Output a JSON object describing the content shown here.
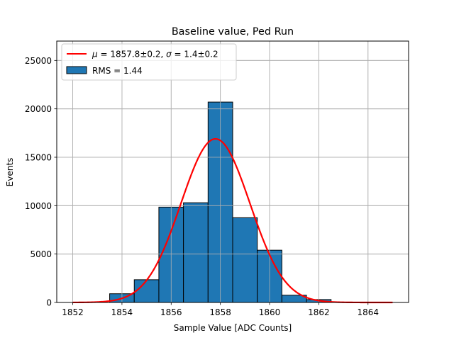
{
  "chart_data": {
    "type": "bar",
    "title": "Baseline value, Ped Run",
    "xlabel": "Sample Value [ADC Counts]",
    "ylabel": "Events",
    "xlim": [
      1851.35,
      1865.65
    ],
    "ylim": [
      0,
      27000
    ],
    "xticks": [
      1852,
      1854,
      1856,
      1858,
      1860,
      1862,
      1864
    ],
    "yticks": [
      0,
      5000,
      10000,
      15000,
      20000,
      25000
    ],
    "grid": true,
    "legend_position": "top-left",
    "bars": {
      "name": "RMS = 1.44",
      "color": "#1f77b4",
      "edge_color": "#000000",
      "bins": [
        {
          "x0": 1853.5,
          "x1": 1854.5,
          "count": 900
        },
        {
          "x0": 1854.5,
          "x1": 1855.5,
          "count": 2350
        },
        {
          "x0": 1855.5,
          "x1": 1856.5,
          "count": 9850
        },
        {
          "x0": 1856.5,
          "x1": 1857.5,
          "count": 10300
        },
        {
          "x0": 1857.5,
          "x1": 1858.5,
          "count": 20700
        },
        {
          "x0": 1858.5,
          "x1": 1859.5,
          "count": 8750
        },
        {
          "x0": 1859.5,
          "x1": 1860.5,
          "count": 5400
        },
        {
          "x0": 1860.5,
          "x1": 1861.5,
          "count": 750
        },
        {
          "x0": 1861.5,
          "x1": 1862.5,
          "count": 300
        }
      ]
    },
    "fit": {
      "name_parts": {
        "mu_sym": "μ",
        "mu_val": " = 1857.8±0.2, ",
        "sigma_sym": "σ",
        "sigma_val": " = 1.4±0.2"
      },
      "color": "#ff0000",
      "mu": 1857.8,
      "sigma": 1.4,
      "amplitude": 16900,
      "x_range": [
        1852,
        1865
      ]
    }
  }
}
